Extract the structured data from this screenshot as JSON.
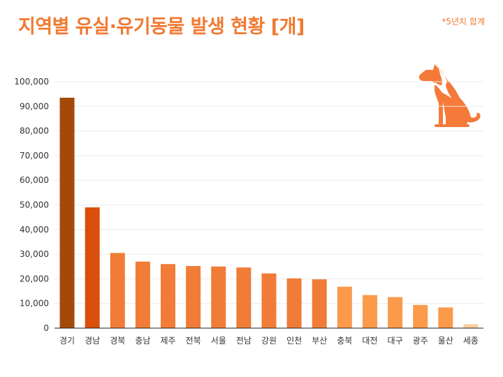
{
  "header": {
    "title": "지역별 유실·유기동물 발생 현황 [개]",
    "note": "*5년치 합계"
  },
  "icons": {
    "mascot": "dog-icon"
  },
  "colors": {
    "accent": "#f07a32"
  },
  "chart_data": {
    "type": "bar",
    "title": "지역별 유실·유기동물 발생 현황 [개]",
    "xlabel": "",
    "ylabel": "",
    "ylim": [
      0,
      100000
    ],
    "yticks": [
      "0",
      "10,000",
      "20,000",
      "30,000",
      "40,000",
      "50,000",
      "60,000",
      "70,000",
      "80,000",
      "90,000",
      "100,000"
    ],
    "categories": [
      "경기",
      "경남",
      "경북",
      "충남",
      "제주",
      "전북",
      "서울",
      "전남",
      "강원",
      "인천",
      "부산",
      "충북",
      "대전",
      "대구",
      "광주",
      "울산",
      "세종"
    ],
    "values": [
      93500,
      49000,
      30500,
      27000,
      26000,
      25200,
      25000,
      24600,
      22200,
      20200,
      19800,
      16800,
      13400,
      12600,
      9400,
      8400,
      1600
    ],
    "bar_colors": [
      "#a34a0b",
      "#d94f0b",
      "#f07c37",
      "#f07c37",
      "#f07c37",
      "#f07c37",
      "#f07c37",
      "#f07c37",
      "#f07c37",
      "#f07c37",
      "#f07c37",
      "#fa9a4a",
      "#fa9a4a",
      "#fa9a4a",
      "#fa9a4a",
      "#fa9a4a",
      "#f9d19d"
    ],
    "grid": true,
    "legend": "none"
  }
}
